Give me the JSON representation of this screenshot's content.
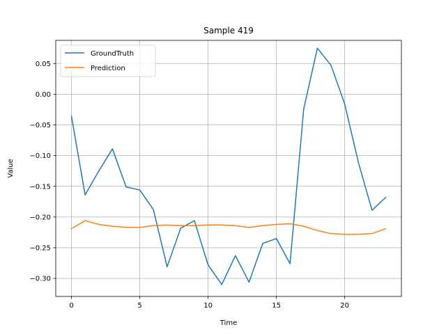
{
  "chart_data": {
    "type": "line",
    "title": "Sample 419",
    "xlabel": "Time",
    "ylabel": "Value",
    "xlim": [
      -1.15,
      24.15
    ],
    "ylim": [
      -0.3293,
      0.0877
    ],
    "xticks": [
      0,
      5,
      10,
      15,
      20
    ],
    "xtick_labels": [
      "0",
      "5",
      "10",
      "15",
      "20"
    ],
    "yticks": [
      -0.3,
      -0.25,
      -0.2,
      -0.15,
      -0.1,
      -0.05,
      0.0,
      0.05
    ],
    "ytick_labels": [
      "−0.30",
      "−0.25",
      "−0.20",
      "−0.15",
      "−0.10",
      "−0.05",
      "0.00",
      "0.05"
    ],
    "grid": true,
    "legend_position": "top-left",
    "x": [
      0,
      1,
      2,
      3,
      4,
      5,
      6,
      7,
      8,
      9,
      10,
      11,
      12,
      13,
      14,
      15,
      16,
      17,
      18,
      19,
      20,
      21,
      22,
      23
    ],
    "series": [
      {
        "name": "GroundTruth",
        "color": "#1f77b4",
        "values": [
          -0.036,
          -0.164,
          -0.125,
          -0.089,
          -0.151,
          -0.156,
          -0.188,
          -0.281,
          -0.218,
          -0.206,
          -0.278,
          -0.31,
          -0.263,
          -0.306,
          -0.243,
          -0.235,
          -0.276,
          -0.024,
          0.075,
          0.047,
          -0.016,
          -0.111,
          -0.189,
          -0.168
        ]
      },
      {
        "name": "Prediction",
        "color": "#ff7f0e",
        "values": [
          -0.219,
          -0.206,
          -0.212,
          -0.215,
          -0.217,
          -0.217,
          -0.214,
          -0.213,
          -0.214,
          -0.214,
          -0.213,
          -0.213,
          -0.214,
          -0.217,
          -0.214,
          -0.212,
          -0.211,
          -0.215,
          -0.222,
          -0.227,
          -0.228,
          -0.228,
          -0.227,
          -0.219
        ]
      }
    ]
  }
}
